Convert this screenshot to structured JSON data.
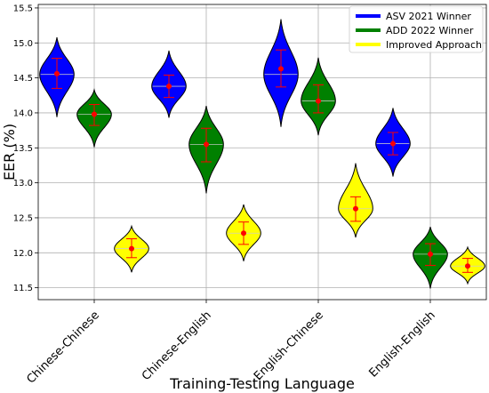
{
  "chart_data": {
    "type": "violin",
    "xlabel": "Training-Testing Language",
    "ylabel": "EER (%)",
    "ylim": [
      11.33,
      15.55
    ],
    "yticks": [
      "11.5",
      "12.0",
      "12.5",
      "13.0",
      "13.5",
      "14.0",
      "14.5",
      "15.0",
      "15.5"
    ],
    "ytick_values": [
      11.5,
      12.0,
      12.5,
      13.0,
      13.5,
      14.0,
      14.5,
      15.0,
      15.5
    ],
    "categories": [
      "Chinese-Chinese",
      "Chinese-English",
      "English-Chinese",
      "English-English"
    ],
    "grid": true,
    "legend_position": "top-right",
    "series": [
      {
        "name": "ASV 2021 Winner",
        "color": "#0000ff",
        "violins": [
          {
            "min": 13.94,
            "max": 15.08,
            "mean": 14.56,
            "median": 14.55,
            "err_low": 14.35,
            "err_high": 14.78
          },
          {
            "min": 13.93,
            "max": 14.89,
            "mean": 14.38,
            "median": 14.38,
            "err_low": 14.22,
            "err_high": 14.54
          },
          {
            "min": 13.8,
            "max": 15.34,
            "mean": 14.63,
            "median": 14.55,
            "err_low": 14.37,
            "err_high": 14.9
          },
          {
            "min": 13.09,
            "max": 14.07,
            "mean": 13.56,
            "median": 13.56,
            "err_low": 13.4,
            "err_high": 13.72
          }
        ]
      },
      {
        "name": "ADD 2022 Winner",
        "color": "#008000",
        "violins": [
          {
            "min": 13.51,
            "max": 14.33,
            "mean": 13.98,
            "median": 13.98,
            "err_low": 13.82,
            "err_high": 14.12
          },
          {
            "min": 12.85,
            "max": 14.1,
            "mean": 13.55,
            "median": 13.55,
            "err_low": 13.3,
            "err_high": 13.78
          },
          {
            "min": 13.68,
            "max": 14.79,
            "mean": 14.17,
            "median": 14.17,
            "err_low": 14.0,
            "err_high": 14.4
          },
          {
            "min": 11.49,
            "max": 12.37,
            "mean": 11.98,
            "median": 11.98,
            "err_low": 11.82,
            "err_high": 12.13
          }
        ]
      },
      {
        "name": "Improved Approach",
        "color": "#ffff00",
        "violins": [
          {
            "min": 11.72,
            "max": 12.38,
            "mean": 12.06,
            "median": 12.06,
            "err_low": 11.93,
            "err_high": 12.2
          },
          {
            "min": 11.88,
            "max": 12.69,
            "mean": 12.28,
            "median": 12.28,
            "err_low": 12.12,
            "err_high": 12.44
          },
          {
            "min": 12.22,
            "max": 13.28,
            "mean": 12.63,
            "median": 12.63,
            "err_low": 12.45,
            "err_high": 12.8
          },
          {
            "min": 11.56,
            "max": 12.08,
            "mean": 11.81,
            "median": 11.81,
            "err_low": 11.72,
            "err_high": 11.92
          }
        ]
      }
    ]
  }
}
